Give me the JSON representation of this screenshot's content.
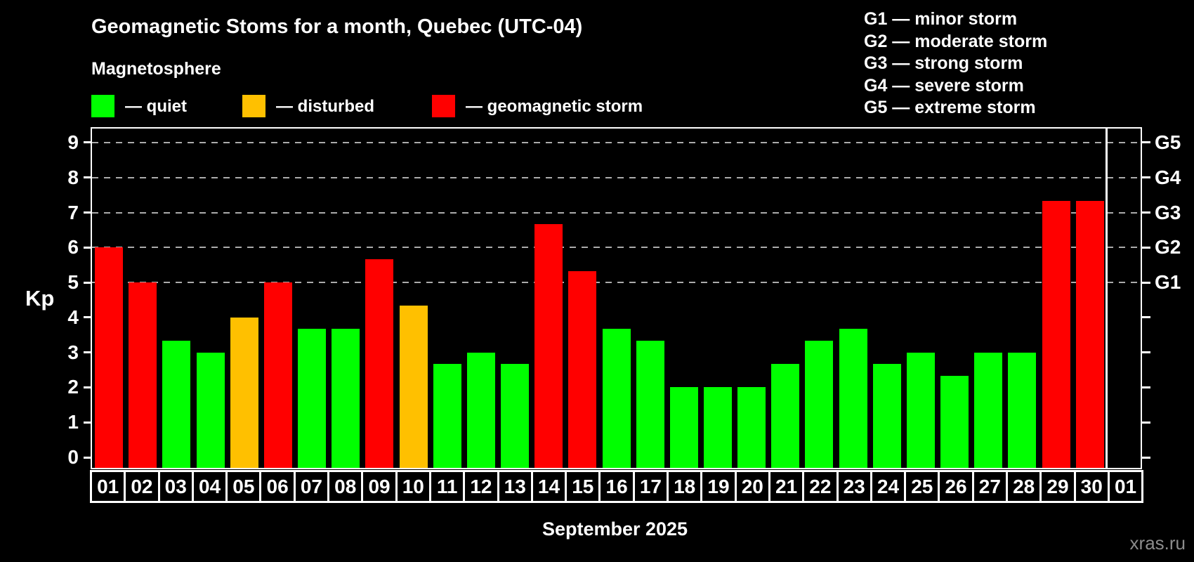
{
  "header": {
    "title": "Geomagnetic Stoms for a month, Quebec (UTC-04)",
    "subtitle": "Magnetosphere",
    "legend": [
      {
        "state": "quiet",
        "label": "— quiet",
        "color": "#00ff00"
      },
      {
        "state": "disturbed",
        "label": "— disturbed",
        "color": "#ffc000"
      },
      {
        "state": "storm",
        "label": "— geomagnetic storm",
        "color": "#ff0000"
      }
    ]
  },
  "g_legend": [
    {
      "label": "G1 — minor storm"
    },
    {
      "label": "G2 — moderate storm"
    },
    {
      "label": "G3 — strong storm"
    },
    {
      "label": "G4 — severe storm"
    },
    {
      "label": "G5 — extreme storm"
    }
  ],
  "chart_data": {
    "type": "bar",
    "title": "Geomagnetic Stoms for a month, Quebec (UTC-04)",
    "xlabel": "September 2025",
    "ylabel": "Kp",
    "ylim": [
      -0.3,
      9.4
    ],
    "yticks": [
      0,
      1,
      2,
      3,
      4,
      5,
      6,
      7,
      8,
      9
    ],
    "gridlines_at": [
      5,
      6,
      7,
      8,
      9
    ],
    "grid_style": "dashed gray horizontal lines at storm levels G1–G5 only",
    "right_axis_labels": [
      {
        "label": "G1",
        "kp": 5
      },
      {
        "label": "G2",
        "kp": 6
      },
      {
        "label": "G3",
        "kp": 7
      },
      {
        "label": "G4",
        "kp": 8
      },
      {
        "label": "G5",
        "kp": 9
      }
    ],
    "categories": [
      "01",
      "02",
      "03",
      "04",
      "05",
      "06",
      "07",
      "08",
      "09",
      "10",
      "11",
      "12",
      "13",
      "14",
      "15",
      "16",
      "17",
      "18",
      "19",
      "20",
      "21",
      "22",
      "23",
      "24",
      "25",
      "26",
      "27",
      "28",
      "29",
      "30",
      "01"
    ],
    "values": [
      6.0,
      5.0,
      3.33,
      3.0,
      4.0,
      5.0,
      3.67,
      3.67,
      5.67,
      4.33,
      2.67,
      3.0,
      2.67,
      6.67,
      5.33,
      3.67,
      3.33,
      2.0,
      2.0,
      2.0,
      2.67,
      3.33,
      3.67,
      2.67,
      3.0,
      2.33,
      3.0,
      3.0,
      7.33,
      7.33,
      null
    ],
    "states": [
      "storm",
      "storm",
      "quiet",
      "quiet",
      "disturbed",
      "storm",
      "quiet",
      "quiet",
      "storm",
      "disturbed",
      "quiet",
      "quiet",
      "quiet",
      "storm",
      "storm",
      "quiet",
      "quiet",
      "quiet",
      "quiet",
      "quiet",
      "quiet",
      "quiet",
      "quiet",
      "quiet",
      "quiet",
      "quiet",
      "quiet",
      "quiet",
      "storm",
      "storm",
      null
    ],
    "state_colors": {
      "quiet": "#00ff00",
      "disturbed": "#ffc000",
      "storm": "#ff0000"
    },
    "month_separator_before_index": 30,
    "legend_position": "top-left",
    "background_color": "#000000",
    "axis_color": "#ffffff"
  },
  "footer": {
    "caption": "September 2025",
    "watermark": "xras.ru"
  }
}
